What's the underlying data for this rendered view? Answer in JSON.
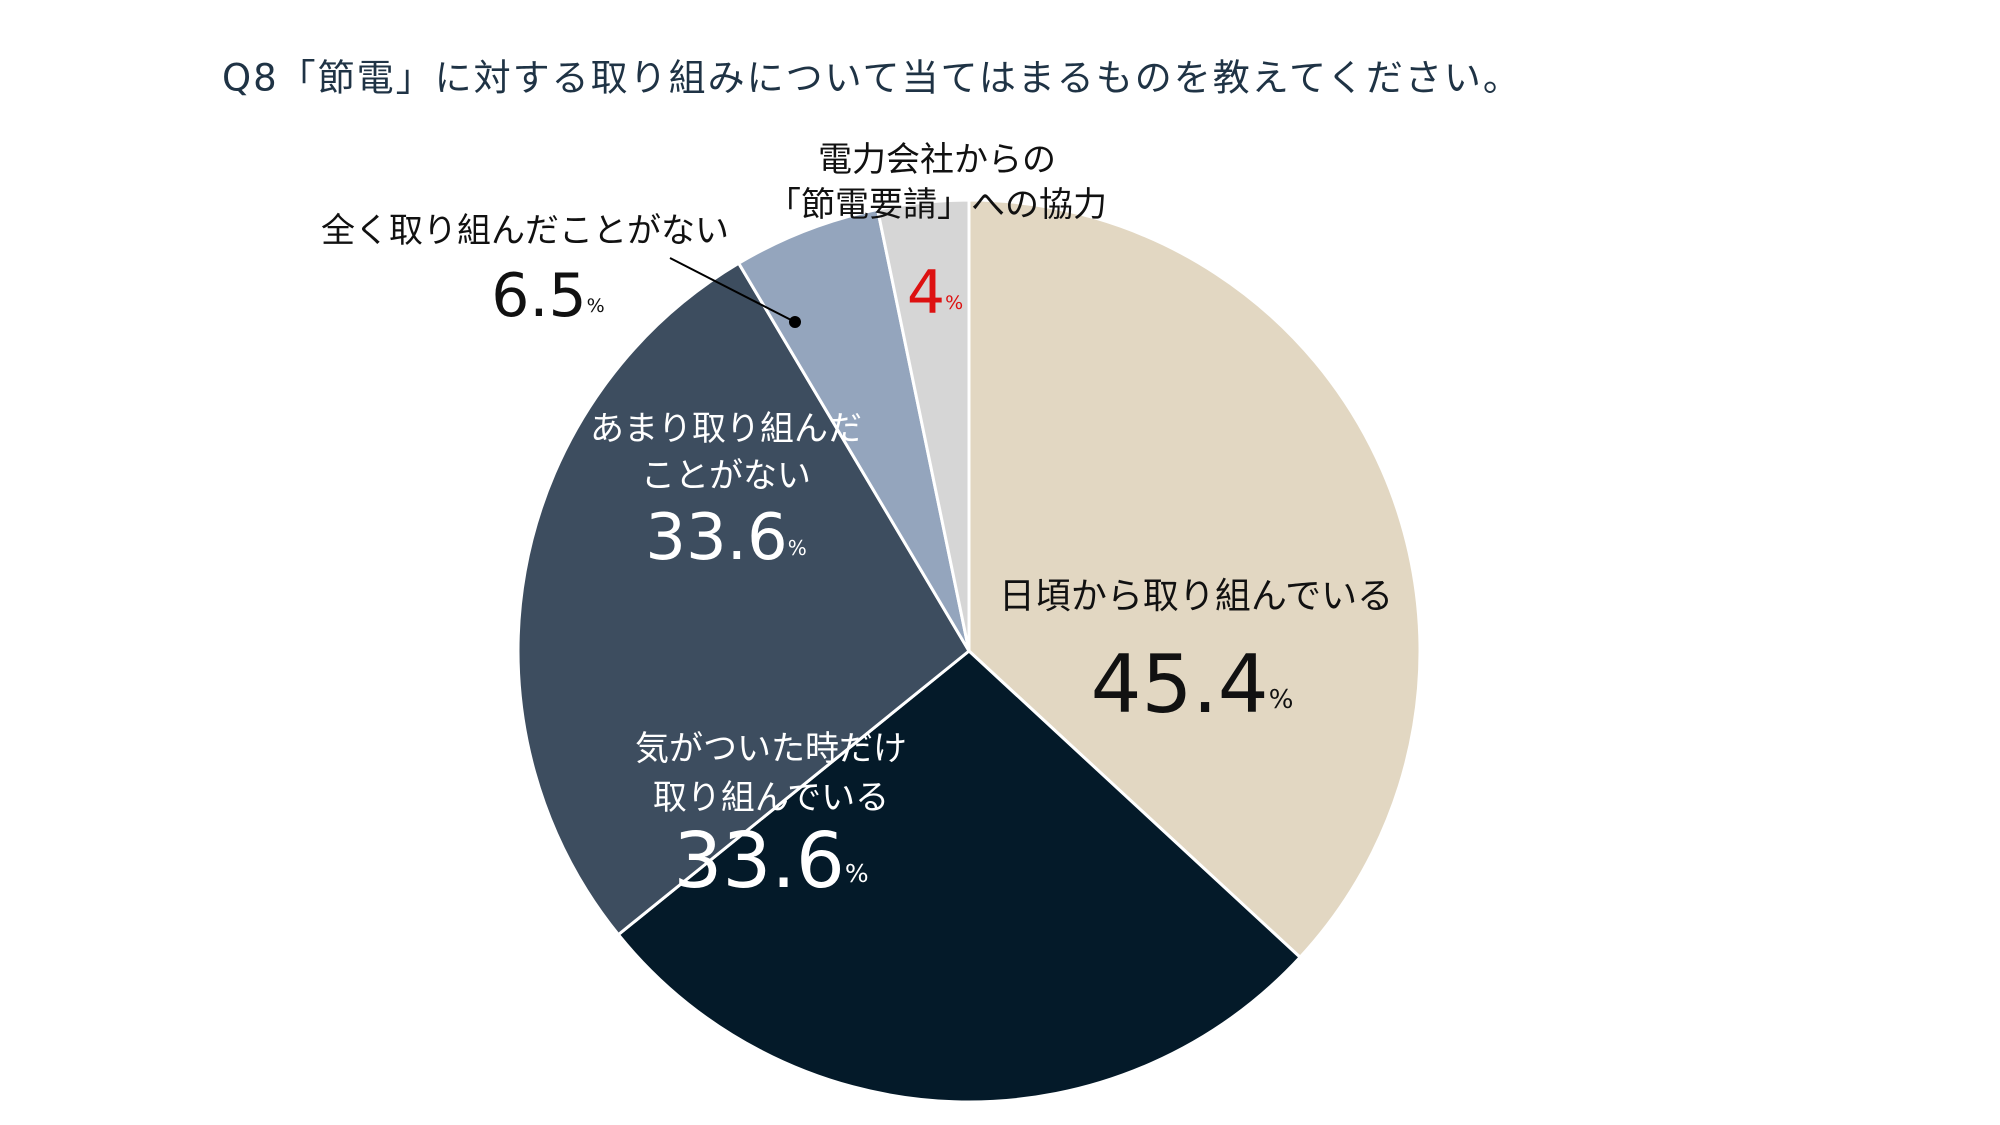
{
  "chart_data": {
    "type": "pie",
    "title": "Q8「節電」に対する取り組みについて当てはまるものを教えてください。",
    "categories": [
      "日頃から取り組んでいる",
      "気がついた時だけ\n取り組んでいる",
      "あまり取り組んだ\nことがない",
      "全く取り組んだことがない",
      "電力会社からの\n「節電要請」への協力"
    ],
    "values": [
      45.4,
      33.6,
      33.6,
      6.5,
      4
    ],
    "value_labels": [
      "45.4%",
      "33.6%",
      "33.6%",
      "6.5%",
      "4%"
    ],
    "colors": [
      "#e2d7c2",
      "#041a29",
      "#3d4d5f",
      "#94a5bd",
      "#d6d6d6"
    ],
    "label_colors": [
      "#111111",
      "#ffffff",
      "#ffffff",
      "#111111",
      "#dd1111"
    ]
  }
}
